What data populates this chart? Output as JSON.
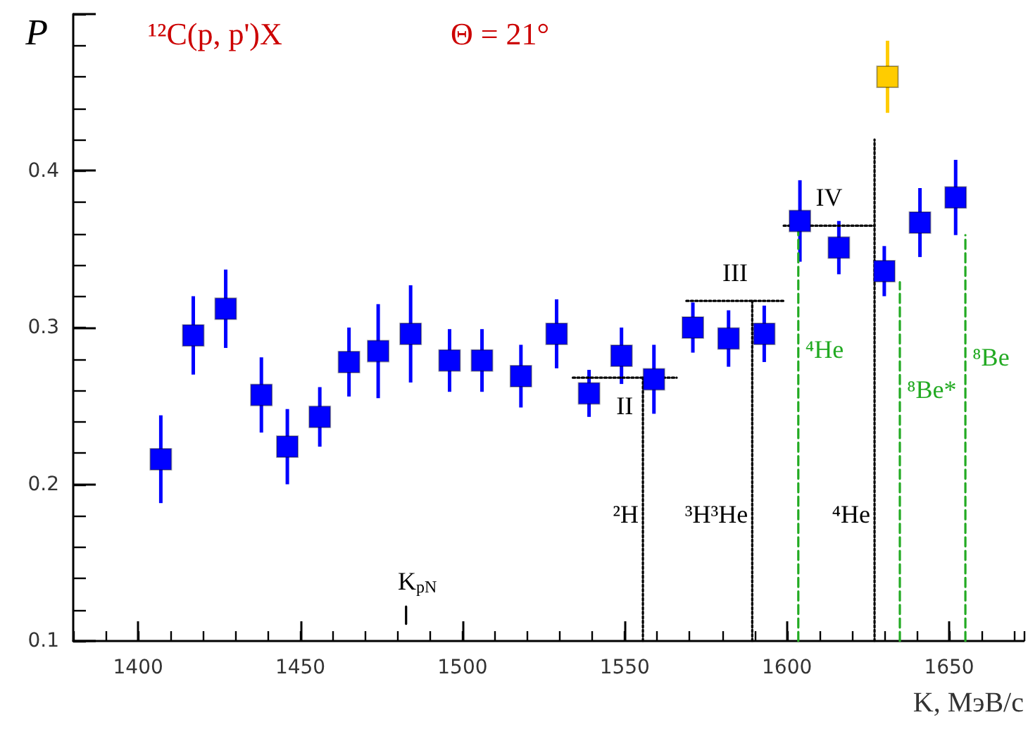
{
  "chart_data": {
    "type": "scatter",
    "title": "¹²C(p, p')X",
    "subtitle": "Θ = 21°",
    "xlabel": "K, МэВ/c",
    "ylabel": "P",
    "xlim": [
      1380,
      1673
    ],
    "xticks": [
      1400,
      1450,
      1500,
      1550,
      1600,
      1650
    ],
    "ylim": [
      0.1,
      0.5
    ],
    "yticks": [
      0.1,
      0.2,
      0.3,
      0.4,
      {
        "value": 0.5,
        "label": null
      }
    ],
    "grid": false,
    "legend": false,
    "marker": "square",
    "series": [
      {
        "type": "scatter",
        "color": "#0000ff",
        "x": [
          1407,
          1417,
          1427,
          1438,
          1446,
          1456,
          1465,
          1474,
          1484,
          1496,
          1506,
          1518,
          1529,
          1539,
          1549,
          1559,
          1571,
          1582,
          1593,
          1604,
          1616,
          1630,
          1641,
          1652
        ],
        "values": [
          0.216,
          0.295,
          0.312,
          0.257,
          0.224,
          0.243,
          0.278,
          0.285,
          0.296,
          0.279,
          0.279,
          0.269,
          0.296,
          0.258,
          0.282,
          0.267,
          0.3,
          0.293,
          0.296,
          0.368,
          0.351,
          0.336,
          0.367,
          0.383
        ],
        "errors": [
          0.028,
          0.025,
          0.025,
          0.024,
          0.024,
          0.019,
          0.022,
          0.03,
          0.031,
          0.02,
          0.02,
          0.02,
          0.022,
          0.015,
          0.018,
          0.022,
          0.016,
          0.018,
          0.018,
          0.026,
          0.017,
          0.016,
          0.022,
          0.024
        ]
      },
      {
        "type": "scatter",
        "color": "#ffcc00",
        "x": [
          1631
        ],
        "values": [
          0.46
        ],
        "errors": [
          0.023
        ]
      },
      {
        "type": "line",
        "name": "II",
        "color": "#000000",
        "line_style": "dotted",
        "marker": "none",
        "x": [
          1534,
          1566
        ],
        "values": [
          0.268,
          0.268
        ]
      },
      {
        "type": "line",
        "name": "III",
        "color": "#000000",
        "line_style": "dotted",
        "marker": "none",
        "x": [
          1569,
          1599
        ],
        "values": [
          0.317,
          0.317
        ]
      },
      {
        "type": "line",
        "name": "IV",
        "color": "#000000",
        "line_style": "dotted",
        "marker": "none",
        "x": [
          1599,
          1627
        ],
        "values": [
          0.365,
          0.365
        ]
      },
      {
        "type": "line",
        "name": "²H",
        "color": "#000000",
        "line_style": "dotted",
        "marker": "none",
        "x": [
          1555.6,
          1555.6
        ],
        "values": [
          0.1,
          0.268
        ]
      },
      {
        "type": "line",
        "name": "³H³He",
        "color": "#000000",
        "line_style": "dotted",
        "marker": "none",
        "x": [
          1589.3,
          1589.3
        ],
        "values": [
          0.1,
          0.317
        ]
      },
      {
        "type": "line",
        "name": "⁴He",
        "color": "#000000",
        "line_style": "dotted",
        "marker": "none",
        "x": [
          1627,
          1627
        ],
        "values": [
          0.1,
          0.42
        ]
      },
      {
        "type": "line",
        "name": "K$_{pN}$",
        "color": "#000000",
        "line_style": "solid",
        "marker": "none",
        "x": [
          1482.6,
          1482.6
        ],
        "values": [
          0.111,
          0.122
        ]
      },
      {
        "type": "line",
        "name": "⁴He",
        "color": "#22aa22",
        "line_style": "dashed",
        "marker": "none",
        "x": [
          1603.5,
          1603.5
        ],
        "values": [
          0.1,
          0.366
        ]
      },
      {
        "type": "line",
        "name": "⁸Be*",
        "color": "#22aa22",
        "line_style": "dashed",
        "marker": "none",
        "x": [
          1634.8,
          1634.8
        ],
        "values": [
          0.1,
          0.329
        ]
      },
      {
        "type": "line",
        "name": "⁸Be",
        "color": "#22aa22",
        "line_style": "dashed",
        "marker": "none",
        "x": [
          1655,
          1655
        ],
        "values": [
          0.1,
          0.359
        ]
      }
    ]
  }
}
